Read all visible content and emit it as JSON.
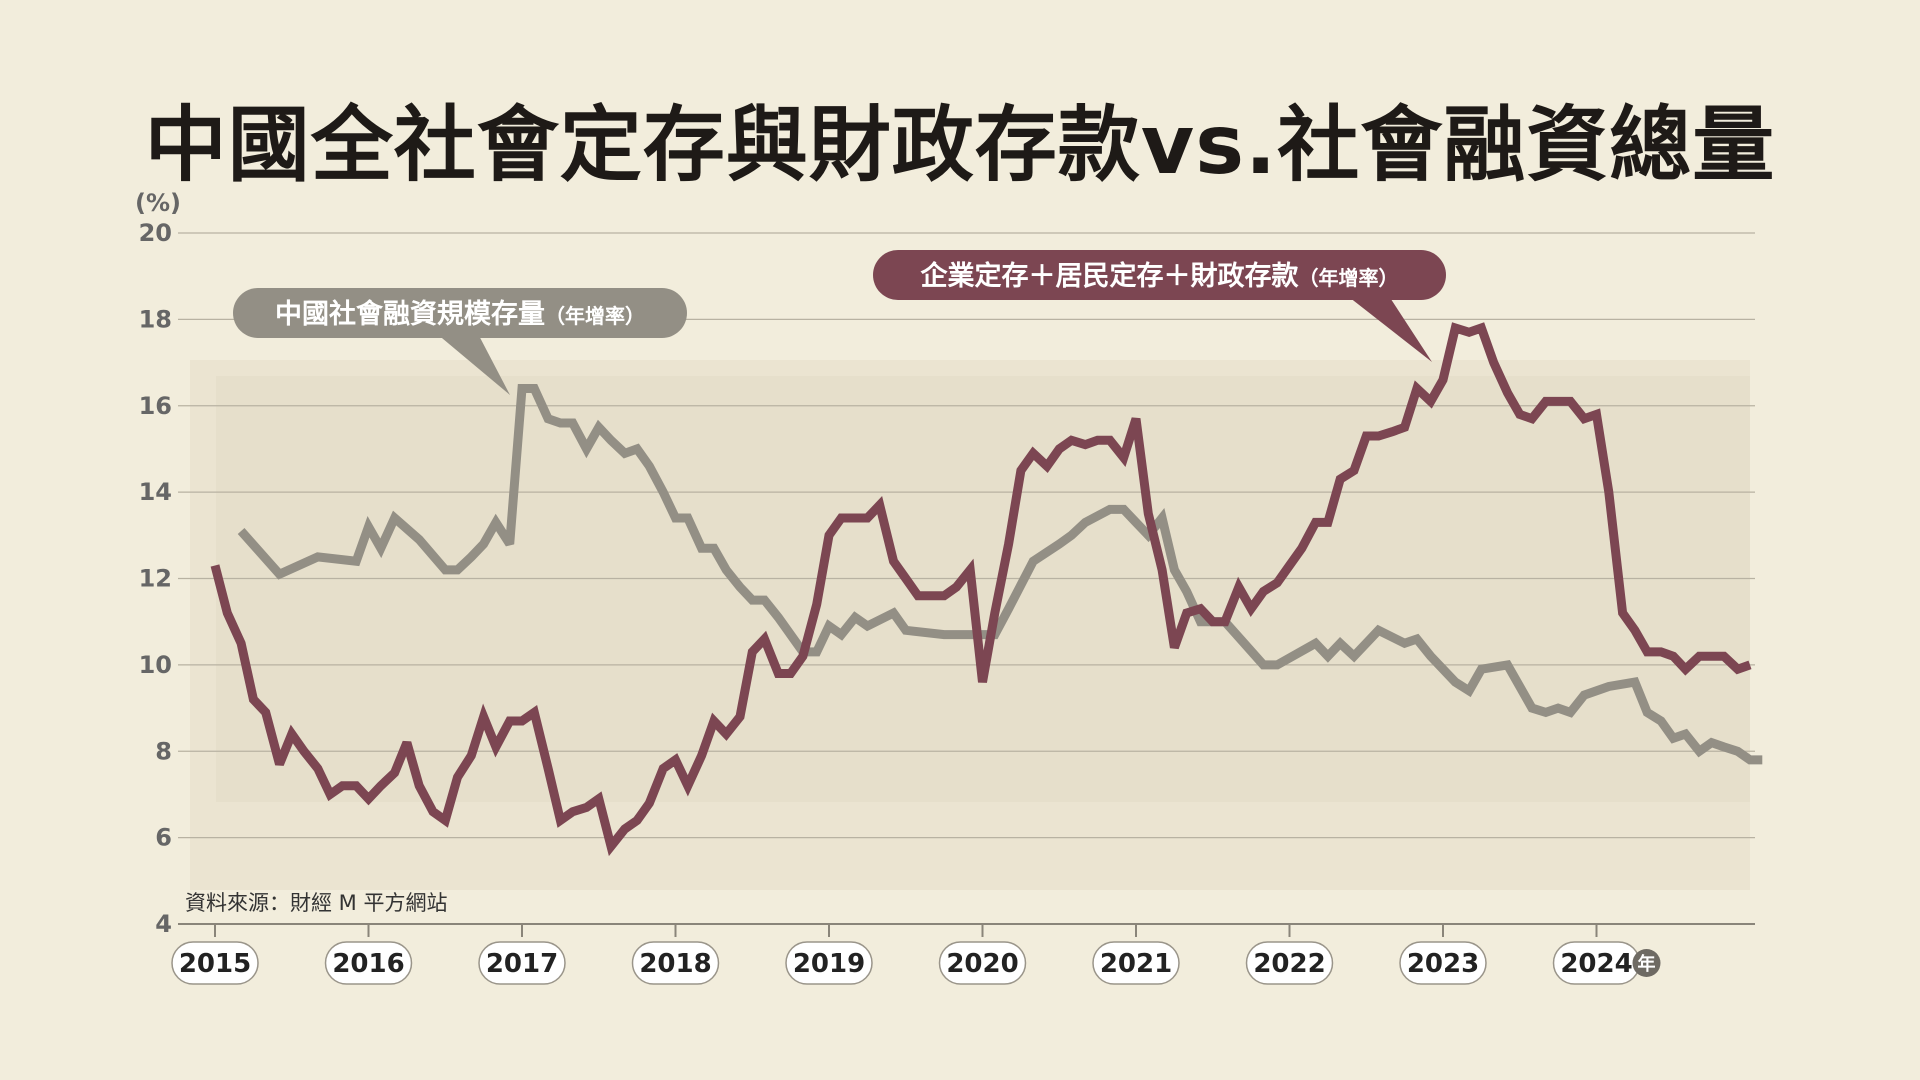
{
  "title": "中國全社會定存與財政存款vs.社會融資總量",
  "source": "資料來源：財經 M 平方網站",
  "chart_data": {
    "type": "line",
    "y_unit": "(%)",
    "x_unit_badge": "年",
    "ylim": [
      4,
      20
    ],
    "y_ticks": [
      4,
      6,
      8,
      10,
      12,
      14,
      16,
      18,
      20
    ],
    "x_range": [
      2015,
      2025.1
    ],
    "year_labels": [
      "2015",
      "2016",
      "2017",
      "2018",
      "2019",
      "2020",
      "2021",
      "2022",
      "2023",
      "2024"
    ],
    "grid": true,
    "series": [
      {
        "name": "企業定存＋居民定存＋財政存款",
        "name_suffix": "（年增率）",
        "color": "#7c4652",
        "points": [
          [
            2015.0,
            12.3
          ],
          [
            2015.08,
            11.2
          ],
          [
            2015.17,
            10.5
          ],
          [
            2015.25,
            9.2
          ],
          [
            2015.33,
            8.9
          ],
          [
            2015.42,
            7.7
          ],
          [
            2015.5,
            8.4
          ],
          [
            2015.58,
            8.0
          ],
          [
            2015.67,
            7.6
          ],
          [
            2015.75,
            7.0
          ],
          [
            2015.83,
            7.2
          ],
          [
            2015.92,
            7.2
          ],
          [
            2016.0,
            6.9
          ],
          [
            2016.08,
            7.2
          ],
          [
            2016.17,
            7.5
          ],
          [
            2016.25,
            8.2
          ],
          [
            2016.33,
            7.2
          ],
          [
            2016.42,
            6.6
          ],
          [
            2016.5,
            6.4
          ],
          [
            2016.58,
            7.4
          ],
          [
            2016.67,
            7.9
          ],
          [
            2016.75,
            8.8
          ],
          [
            2016.83,
            8.1
          ],
          [
            2016.92,
            8.7
          ],
          [
            2017.0,
            8.7
          ],
          [
            2017.08,
            8.9
          ],
          [
            2017.17,
            7.6
          ],
          [
            2017.25,
            6.4
          ],
          [
            2017.33,
            6.6
          ],
          [
            2017.42,
            6.7
          ],
          [
            2017.5,
            6.9
          ],
          [
            2017.58,
            5.8
          ],
          [
            2017.67,
            6.2
          ],
          [
            2017.75,
            6.4
          ],
          [
            2017.83,
            6.8
          ],
          [
            2017.92,
            7.6
          ],
          [
            2018.0,
            7.8
          ],
          [
            2018.08,
            7.2
          ],
          [
            2018.17,
            7.9
          ],
          [
            2018.25,
            8.7
          ],
          [
            2018.33,
            8.4
          ],
          [
            2018.42,
            8.8
          ],
          [
            2018.5,
            10.3
          ],
          [
            2018.58,
            10.6
          ],
          [
            2018.67,
            9.8
          ],
          [
            2018.75,
            9.8
          ],
          [
            2018.83,
            10.2
          ],
          [
            2018.92,
            11.4
          ],
          [
            2019.0,
            13.0
          ],
          [
            2019.08,
            13.4
          ],
          [
            2019.17,
            13.4
          ],
          [
            2019.25,
            13.4
          ],
          [
            2019.33,
            13.7
          ],
          [
            2019.42,
            12.4
          ],
          [
            2019.5,
            12.0
          ],
          [
            2019.58,
            11.6
          ],
          [
            2019.67,
            11.6
          ],
          [
            2019.75,
            11.6
          ],
          [
            2019.83,
            11.8
          ],
          [
            2019.92,
            12.2
          ],
          [
            2020.0,
            9.6
          ],
          [
            2020.08,
            11.2
          ],
          [
            2020.17,
            12.8
          ],
          [
            2020.25,
            14.5
          ],
          [
            2020.33,
            14.9
          ],
          [
            2020.42,
            14.6
          ],
          [
            2020.5,
            15.0
          ],
          [
            2020.58,
            15.2
          ],
          [
            2020.67,
            15.1
          ],
          [
            2020.75,
            15.2
          ],
          [
            2020.83,
            15.2
          ],
          [
            2020.92,
            14.8
          ],
          [
            2021.0,
            15.7
          ],
          [
            2021.08,
            13.5
          ],
          [
            2021.17,
            12.2
          ],
          [
            2021.25,
            10.4
          ],
          [
            2021.33,
            11.2
          ],
          [
            2021.42,
            11.3
          ],
          [
            2021.5,
            11.0
          ],
          [
            2021.58,
            11.0
          ],
          [
            2021.67,
            11.8
          ],
          [
            2021.75,
            11.3
          ],
          [
            2021.83,
            11.7
          ],
          [
            2021.92,
            11.9
          ],
          [
            2022.0,
            12.3
          ],
          [
            2022.08,
            12.7
          ],
          [
            2022.17,
            13.3
          ],
          [
            2022.25,
            13.3
          ],
          [
            2022.33,
            14.3
          ],
          [
            2022.42,
            14.5
          ],
          [
            2022.5,
            15.3
          ],
          [
            2022.58,
            15.3
          ],
          [
            2022.67,
            15.4
          ],
          [
            2022.75,
            15.5
          ],
          [
            2022.83,
            16.4
          ],
          [
            2022.92,
            16.1
          ],
          [
            2023.0,
            16.6
          ],
          [
            2023.08,
            17.8
          ],
          [
            2023.17,
            17.7
          ],
          [
            2023.25,
            17.8
          ],
          [
            2023.33,
            17.0
          ],
          [
            2023.42,
            16.3
          ],
          [
            2023.5,
            15.8
          ],
          [
            2023.58,
            15.7
          ],
          [
            2023.67,
            16.1
          ],
          [
            2023.75,
            16.1
          ],
          [
            2023.83,
            16.1
          ],
          [
            2023.92,
            15.7
          ],
          [
            2024.0,
            15.8
          ],
          [
            2024.08,
            14.0
          ],
          [
            2024.17,
            11.2
          ],
          [
            2024.25,
            10.8
          ],
          [
            2024.33,
            10.3
          ],
          [
            2024.42,
            10.3
          ],
          [
            2024.5,
            10.2
          ],
          [
            2024.58,
            9.9
          ],
          [
            2024.67,
            10.2
          ],
          [
            2024.75,
            10.2
          ],
          [
            2024.83,
            10.2
          ],
          [
            2024.92,
            9.9
          ],
          [
            2025.0,
            10.0
          ]
        ]
      },
      {
        "name": "中國社會融資規模存量",
        "name_suffix": "（年增率）",
        "color": "#938f85",
        "points": [
          [
            2015.17,
            13.1
          ],
          [
            2015.42,
            12.1
          ],
          [
            2015.67,
            12.5
          ],
          [
            2015.92,
            12.4
          ],
          [
            2016.0,
            13.2
          ],
          [
            2016.08,
            12.7
          ],
          [
            2016.17,
            13.4
          ],
          [
            2016.33,
            12.9
          ],
          [
            2016.5,
            12.2
          ],
          [
            2016.58,
            12.2
          ],
          [
            2016.67,
            12.5
          ],
          [
            2016.75,
            12.8
          ],
          [
            2016.83,
            13.3
          ],
          [
            2016.92,
            12.8
          ],
          [
            2017.0,
            16.4
          ],
          [
            2017.08,
            16.4
          ],
          [
            2017.17,
            15.7
          ],
          [
            2017.25,
            15.6
          ],
          [
            2017.33,
            15.6
          ],
          [
            2017.42,
            15.0
          ],
          [
            2017.5,
            15.5
          ],
          [
            2017.58,
            15.2
          ],
          [
            2017.67,
            14.9
          ],
          [
            2017.75,
            15.0
          ],
          [
            2017.83,
            14.6
          ],
          [
            2017.92,
            14.0
          ],
          [
            2018.0,
            13.4
          ],
          [
            2018.08,
            13.4
          ],
          [
            2018.17,
            12.7
          ],
          [
            2018.25,
            12.7
          ],
          [
            2018.33,
            12.2
          ],
          [
            2018.42,
            11.8
          ],
          [
            2018.5,
            11.5
          ],
          [
            2018.58,
            11.5
          ],
          [
            2018.67,
            11.1
          ],
          [
            2018.75,
            10.7
          ],
          [
            2018.83,
            10.3
          ],
          [
            2018.92,
            10.3
          ],
          [
            2019.0,
            10.9
          ],
          [
            2019.08,
            10.7
          ],
          [
            2019.17,
            11.1
          ],
          [
            2019.25,
            10.9
          ],
          [
            2019.42,
            11.2
          ],
          [
            2019.5,
            10.8
          ],
          [
            2019.75,
            10.7
          ],
          [
            2020.0,
            10.7
          ],
          [
            2020.08,
            10.7
          ],
          [
            2020.17,
            11.3
          ],
          [
            2020.33,
            12.4
          ],
          [
            2020.5,
            12.8
          ],
          [
            2020.58,
            13.0
          ],
          [
            2020.67,
            13.3
          ],
          [
            2020.83,
            13.6
          ],
          [
            2020.92,
            13.6
          ],
          [
            2021.0,
            13.3
          ],
          [
            2021.08,
            13.0
          ],
          [
            2021.17,
            13.4
          ],
          [
            2021.25,
            12.2
          ],
          [
            2021.33,
            11.7
          ],
          [
            2021.42,
            11.0
          ],
          [
            2021.58,
            11.0
          ],
          [
            2021.83,
            10.0
          ],
          [
            2021.92,
            10.0
          ],
          [
            2022.17,
            10.5
          ],
          [
            2022.25,
            10.2
          ],
          [
            2022.33,
            10.5
          ],
          [
            2022.42,
            10.2
          ],
          [
            2022.58,
            10.8
          ],
          [
            2022.75,
            10.5
          ],
          [
            2022.83,
            10.6
          ],
          [
            2022.92,
            10.2
          ],
          [
            2023.08,
            9.6
          ],
          [
            2023.17,
            9.4
          ],
          [
            2023.25,
            9.9
          ],
          [
            2023.42,
            10.0
          ],
          [
            2023.58,
            9.0
          ],
          [
            2023.67,
            8.9
          ],
          [
            2023.75,
            9.0
          ],
          [
            2023.83,
            8.9
          ],
          [
            2023.92,
            9.3
          ],
          [
            2024.08,
            9.5
          ],
          [
            2024.25,
            9.6
          ],
          [
            2024.33,
            8.9
          ],
          [
            2024.42,
            8.7
          ],
          [
            2024.5,
            8.3
          ],
          [
            2024.58,
            8.4
          ],
          [
            2024.67,
            8.0
          ],
          [
            2024.75,
            8.2
          ],
          [
            2024.83,
            8.1
          ],
          [
            2024.92,
            8.0
          ],
          [
            2025.0,
            7.8
          ],
          [
            2025.08,
            7.8
          ]
        ]
      }
    ]
  }
}
